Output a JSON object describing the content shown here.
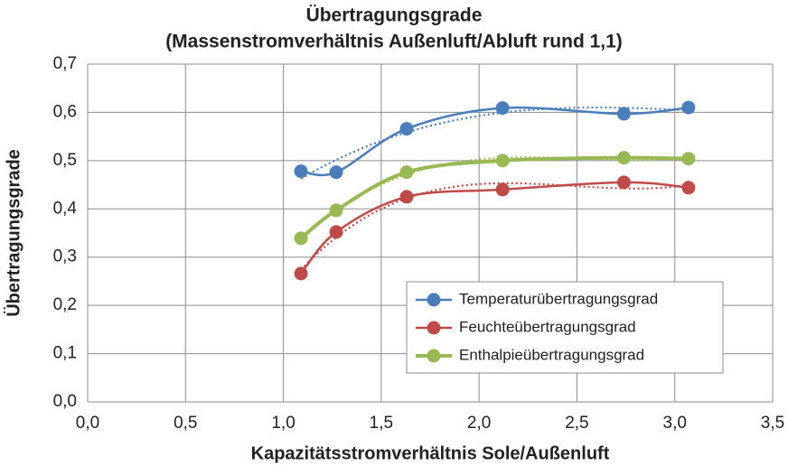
{
  "chart_data": {
    "type": "line",
    "title": "Übertragungsgrade",
    "subtitle": "(Massenstromverhältnis Außenluft/Abluft rund 1,1)",
    "x_label": "Kapazitätsstromverhältnis Sole/Außenluft",
    "y_label": "Übertragungsgrade",
    "x": [
      1.09,
      1.27,
      1.63,
      2.12,
      2.74,
      3.07
    ],
    "series": [
      {
        "name": "Temperaturübertragungsgrad",
        "color": "#4a7ebb",
        "values": [
          0.478,
          0.476,
          0.566,
          0.609,
          0.597,
          0.61
        ]
      },
      {
        "name": "Feuchteübertragungsgrad",
        "color": "#be4b48",
        "values": [
          0.266,
          0.352,
          0.425,
          0.44,
          0.455,
          0.444
        ]
      },
      {
        "name": "Enthalpieübertragungsgrad",
        "color": "#98b954",
        "values": [
          0.339,
          0.397,
          0.476,
          0.5,
          0.506,
          0.504
        ]
      }
    ],
    "xlim": [
      0,
      3.5
    ],
    "xticks": [
      {
        "value": 0,
        "label": "0,0"
      },
      {
        "value": 0.5,
        "label": "0,5"
      },
      {
        "value": 1,
        "label": "1,0"
      },
      {
        "value": 1.5,
        "label": "1,5"
      },
      {
        "value": 2,
        "label": "2,0"
      },
      {
        "value": 2.5,
        "label": "2,5"
      },
      {
        "value": 3,
        "label": "3,0"
      },
      {
        "value": 3.5,
        "label": "3,5"
      }
    ],
    "ylim": [
      0,
      0.7
    ],
    "yticks": [
      {
        "value": 0,
        "label": "0,0"
      },
      {
        "value": 0.1,
        "label": "0,1"
      },
      {
        "value": 0.2,
        "label": "0,2"
      },
      {
        "value": 0.3,
        "label": "0,3"
      },
      {
        "value": 0.4,
        "label": "0,4"
      },
      {
        "value": 0.5,
        "label": "0,5"
      },
      {
        "value": 0.6,
        "label": "0,6"
      },
      {
        "value": 0.7,
        "label": "0,7"
      }
    ],
    "grid": true,
    "smooth": true,
    "trendline": "polynomial",
    "legend_position": "lower right"
  }
}
